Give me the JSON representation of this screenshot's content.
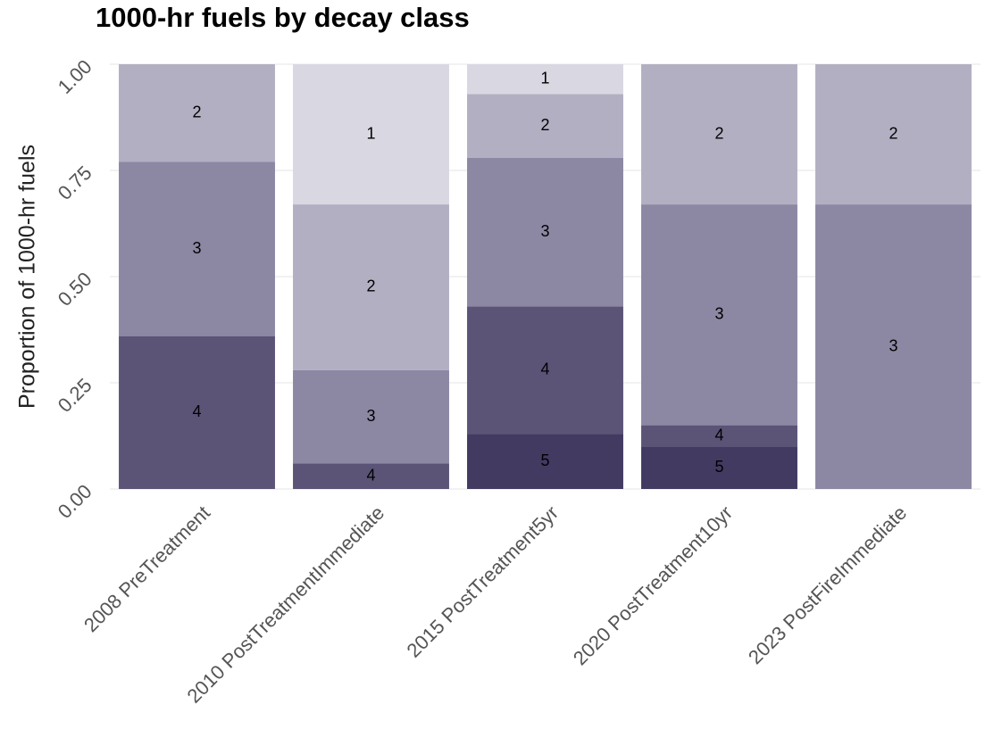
{
  "chart_data": {
    "type": "stacked_bar",
    "title": "1000-hr fuels by decay class",
    "y_label": "Proportion of 1000-hr fuels",
    "categories": [
      "2008 PreTreatment",
      "2010 PostTreatmentImmediate",
      "2015 PostTreatment5yr",
      "2020 PostTreatment10yr",
      "2023 PostFireImmediate"
    ],
    "series": [
      {
        "name": "1",
        "color": "#d9d7e1",
        "values": [
          null,
          0.33,
          0.07,
          null,
          null
        ]
      },
      {
        "name": "2",
        "color": "#b2afc3",
        "values": [
          0.23,
          0.39,
          0.15,
          0.33,
          0.33
        ]
      },
      {
        "name": "3",
        "color": "#8c87a3",
        "values": [
          0.41,
          0.22,
          0.35,
          0.52,
          0.67
        ]
      },
      {
        "name": "4",
        "color": "#5b5477",
        "values": [
          0.36,
          0.06,
          0.3,
          0.05,
          null
        ]
      },
      {
        "name": "5",
        "color": "#433a61",
        "values": [
          null,
          null,
          0.13,
          0.1,
          null
        ]
      }
    ],
    "ylim": [
      0,
      1
    ],
    "yticks": [
      {
        "value": 0,
        "label": "0.00"
      },
      {
        "value": 0.25,
        "label": "0.25"
      },
      {
        "value": 0.5,
        "label": "0.50"
      },
      {
        "value": 0.75,
        "label": "0.75"
      },
      {
        "value": 1,
        "label": "1.00"
      }
    ],
    "grid": true
  }
}
